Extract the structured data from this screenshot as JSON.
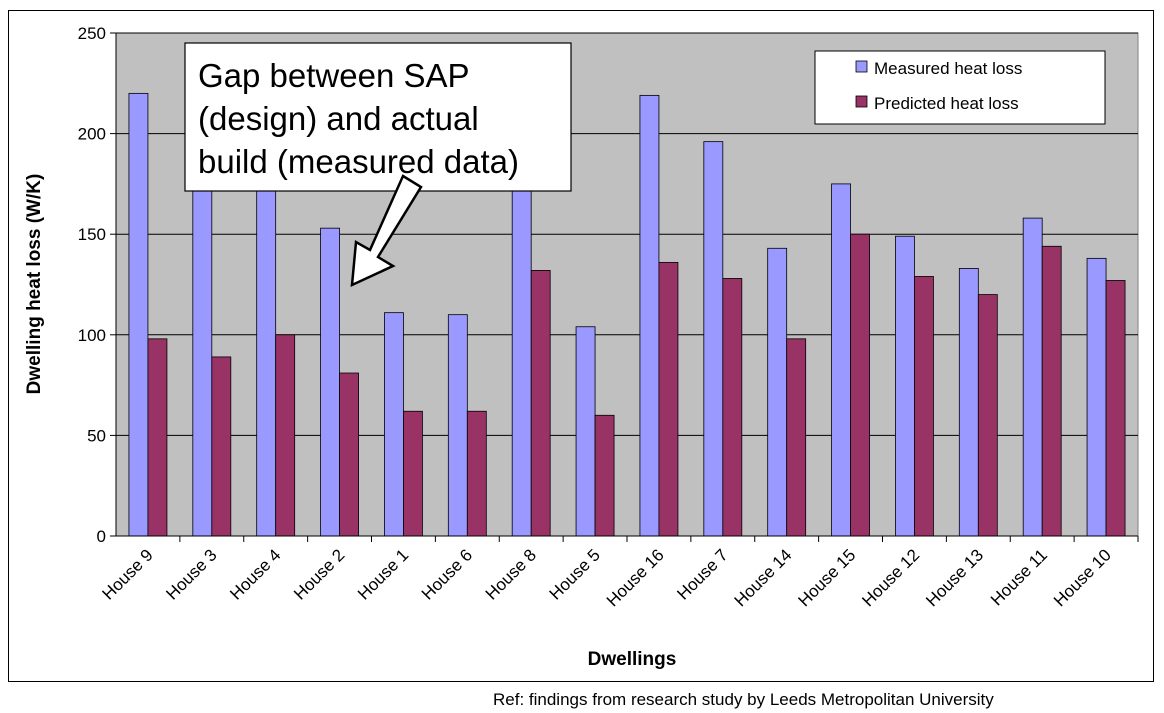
{
  "chart_data": {
    "type": "bar",
    "xlabel": "Dwellings",
    "ylabel": "Dwelling heat loss (W/K)",
    "ylim": [
      0,
      250
    ],
    "yticks": [
      0,
      50,
      100,
      150,
      200,
      250
    ],
    "grid": true,
    "legend_position": "top-right",
    "categories": [
      "House 9",
      "House 3",
      "House 4",
      "House 2",
      "House 1",
      "House 6",
      "House 8",
      "House 5",
      "House 16",
      "House 7",
      "House 14",
      "House 15",
      "House 12",
      "House 13",
      "House 11",
      "House 10"
    ],
    "series": [
      {
        "name": "Measured heat loss",
        "color": "#9999ff",
        "values": [
          220,
          185,
          187,
          153,
          111,
          110,
          188,
          104,
          219,
          196,
          143,
          175,
          149,
          133,
          158,
          138
        ]
      },
      {
        "name": "Predicted heat loss",
        "color": "#993366",
        "values": [
          98,
          89,
          100,
          81,
          62,
          62,
          132,
          60,
          136,
          128,
          98,
          150,
          129,
          120,
          144,
          127
        ]
      }
    ],
    "annotation": {
      "lines": [
        "Gap between SAP",
        "(design) and actual",
        "build (measured data)"
      ]
    }
  },
  "footer": {
    "reference": "Ref: findings from research study by Leeds Metropolitan University"
  },
  "colors": {
    "plot_background": "#c0c0c0",
    "measured": "#9999ff",
    "predicted": "#993366"
  }
}
